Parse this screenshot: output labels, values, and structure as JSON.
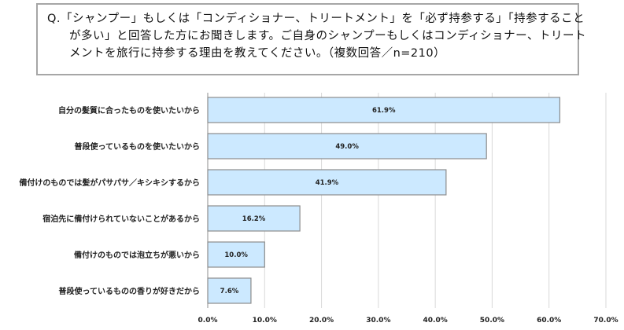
{
  "chart_data": {
    "type": "bar",
    "orientation": "horizontal",
    "title": "Q.「シャンプー」もしくは「コンディショナー、トリートメント」を「必ず持参する」「持参することが多い」と回答した方にお聞きします。ご自身のシャンプーもしくはコンディショナー、トリートメントを旅行に持参する理由を教えてください。（複数回答／n=210）",
    "categories": [
      "自分の髪質に合ったものを使いたいから",
      "普段使っているものを使いたいから",
      "備付けのものでは髪がパサパサ／キシキシするから",
      "宿泊先に備付けられていないことがあるから",
      "備付けのものでは泡立ちが悪いから",
      "普段使っているものの香りが好きだから"
    ],
    "values": [
      61.9,
      49.0,
      41.9,
      16.2,
      10.0,
      7.6
    ],
    "value_labels": [
      "61.9%",
      "49.0%",
      "41.9%",
      "16.2%",
      "10.0%",
      "7.6%"
    ],
    "xlim": [
      0,
      70
    ],
    "ticks": [
      0,
      10,
      20,
      30,
      40,
      50,
      60,
      70
    ],
    "tick_labels": [
      "0.0%",
      "10.0%",
      "20.0%",
      "30.0%",
      "40.0%",
      "50.0%",
      "60.0%",
      "70.0%"
    ],
    "grid": true,
    "bar_color": "#cce9ff",
    "bar_border": "#8c8c8c",
    "xlabel": "",
    "ylabel": ""
  }
}
